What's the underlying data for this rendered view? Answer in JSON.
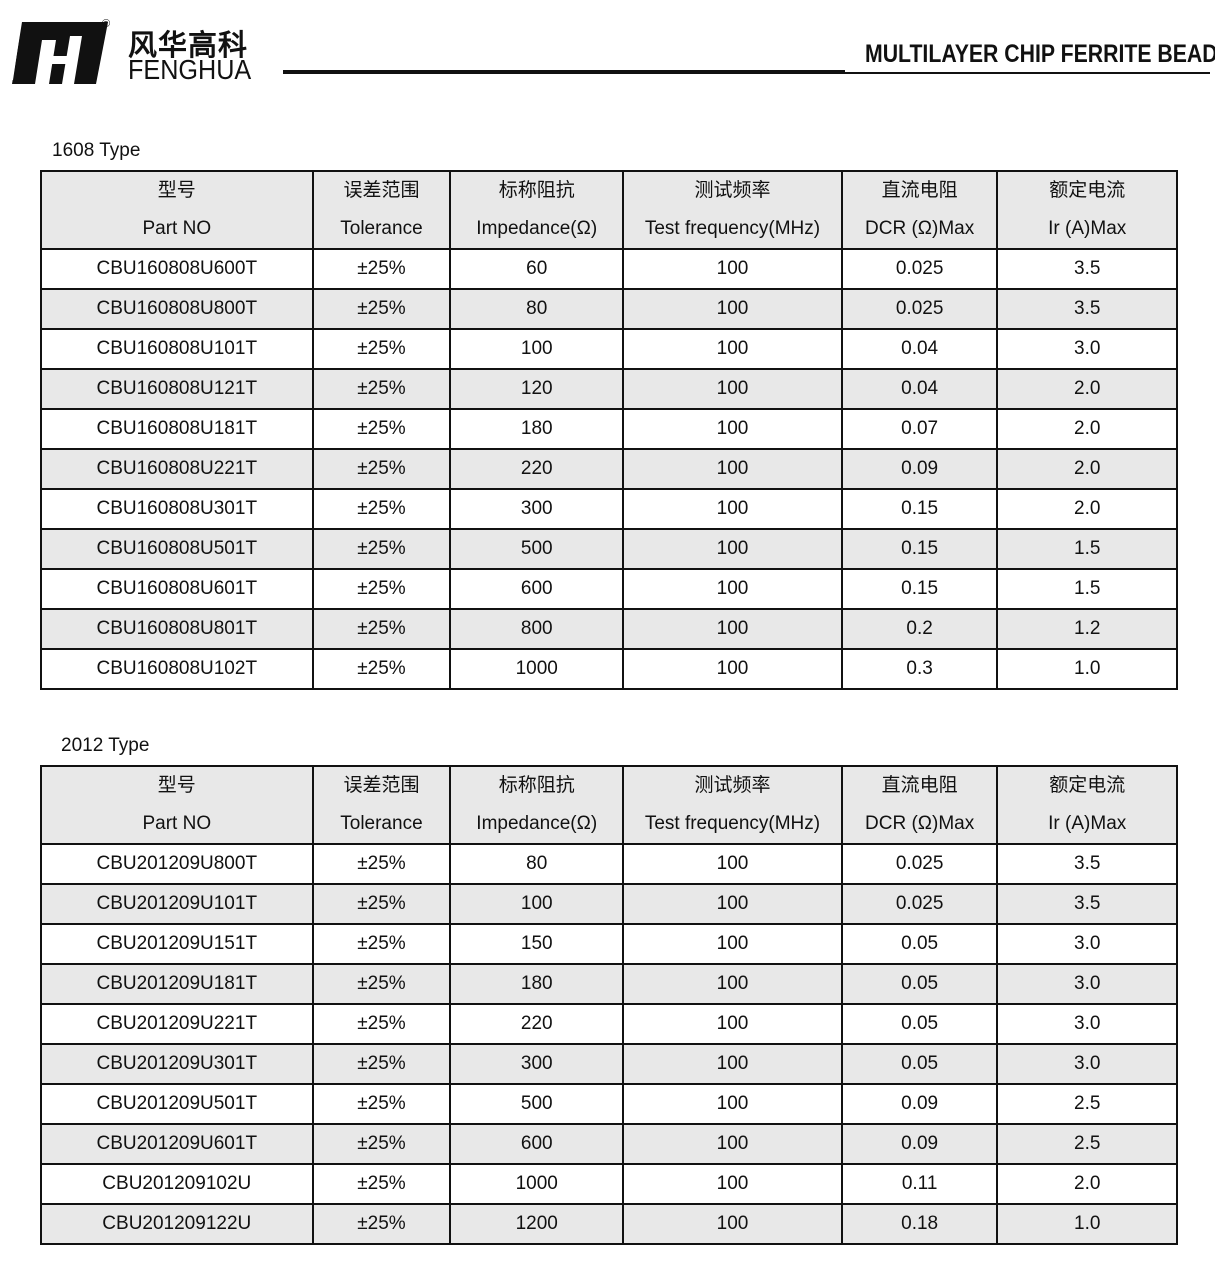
{
  "header": {
    "brand_cn": "风华高科",
    "brand_en": "FENGHUA",
    "registered": "®",
    "doc_title": "MULTILAYER CHIP FERRITE BEADS"
  },
  "columns": [
    {
      "cn": "型号",
      "en": "Part NO"
    },
    {
      "cn": "误差范围",
      "en": "Tolerance"
    },
    {
      "cn": "标称阻抗",
      "en": "Impedance(Ω)"
    },
    {
      "cn": "测试频率",
      "en": "Test frequency(MHz)"
    },
    {
      "cn": "直流电阻",
      "en": "DCR (Ω)Max"
    },
    {
      "cn": "额定电流",
      "en": "Ir (A)Max"
    }
  ],
  "tables": [
    {
      "caption": "1608 Type",
      "rows": [
        [
          "CBU160808U600T",
          "±25%",
          "60",
          "100",
          "0.025",
          "3.5"
        ],
        [
          "CBU160808U800T",
          "±25%",
          "80",
          "100",
          "0.025",
          "3.5"
        ],
        [
          "CBU160808U101T",
          "±25%",
          "100",
          "100",
          "0.04",
          "3.0"
        ],
        [
          "CBU160808U121T",
          "±25%",
          "120",
          "100",
          "0.04",
          "2.0"
        ],
        [
          "CBU160808U181T",
          "±25%",
          "180",
          "100",
          "0.07",
          "2.0"
        ],
        [
          "CBU160808U221T",
          "±25%",
          "220",
          "100",
          "0.09",
          "2.0"
        ],
        [
          "CBU160808U301T",
          "±25%",
          "300",
          "100",
          "0.15",
          "2.0"
        ],
        [
          "CBU160808U501T",
          "±25%",
          "500",
          "100",
          "0.15",
          "1.5"
        ],
        [
          "CBU160808U601T",
          "±25%",
          "600",
          "100",
          "0.15",
          "1.5"
        ],
        [
          "CBU160808U801T",
          "±25%",
          "800",
          "100",
          "0.2",
          "1.2"
        ],
        [
          "CBU160808U102T",
          "±25%",
          "1000",
          "100",
          "0.3",
          "1.0"
        ]
      ]
    },
    {
      "caption": "2012 Type",
      "rows": [
        [
          "CBU201209U800T",
          "±25%",
          "80",
          "100",
          "0.025",
          "3.5"
        ],
        [
          "CBU201209U101T",
          "±25%",
          "100",
          "100",
          "0.025",
          "3.5"
        ],
        [
          "CBU201209U151T",
          "±25%",
          "150",
          "100",
          "0.05",
          "3.0"
        ],
        [
          "CBU201209U181T",
          "±25%",
          "180",
          "100",
          "0.05",
          "3.0"
        ],
        [
          "CBU201209U221T",
          "±25%",
          "220",
          "100",
          "0.05",
          "3.0"
        ],
        [
          "CBU201209U301T",
          "±25%",
          "300",
          "100",
          "0.05",
          "3.0"
        ],
        [
          "CBU201209U501T",
          "±25%",
          "500",
          "100",
          "0.09",
          "2.5"
        ],
        [
          "CBU201209U601T",
          "±25%",
          "600",
          "100",
          "0.09",
          "2.5"
        ],
        [
          "CBU201209102U",
          "±25%",
          "1000",
          "100",
          "0.11",
          "2.0"
        ],
        [
          "CBU201209122U",
          "±25%",
          "1200",
          "100",
          "0.18",
          "1.0"
        ]
      ]
    }
  ]
}
